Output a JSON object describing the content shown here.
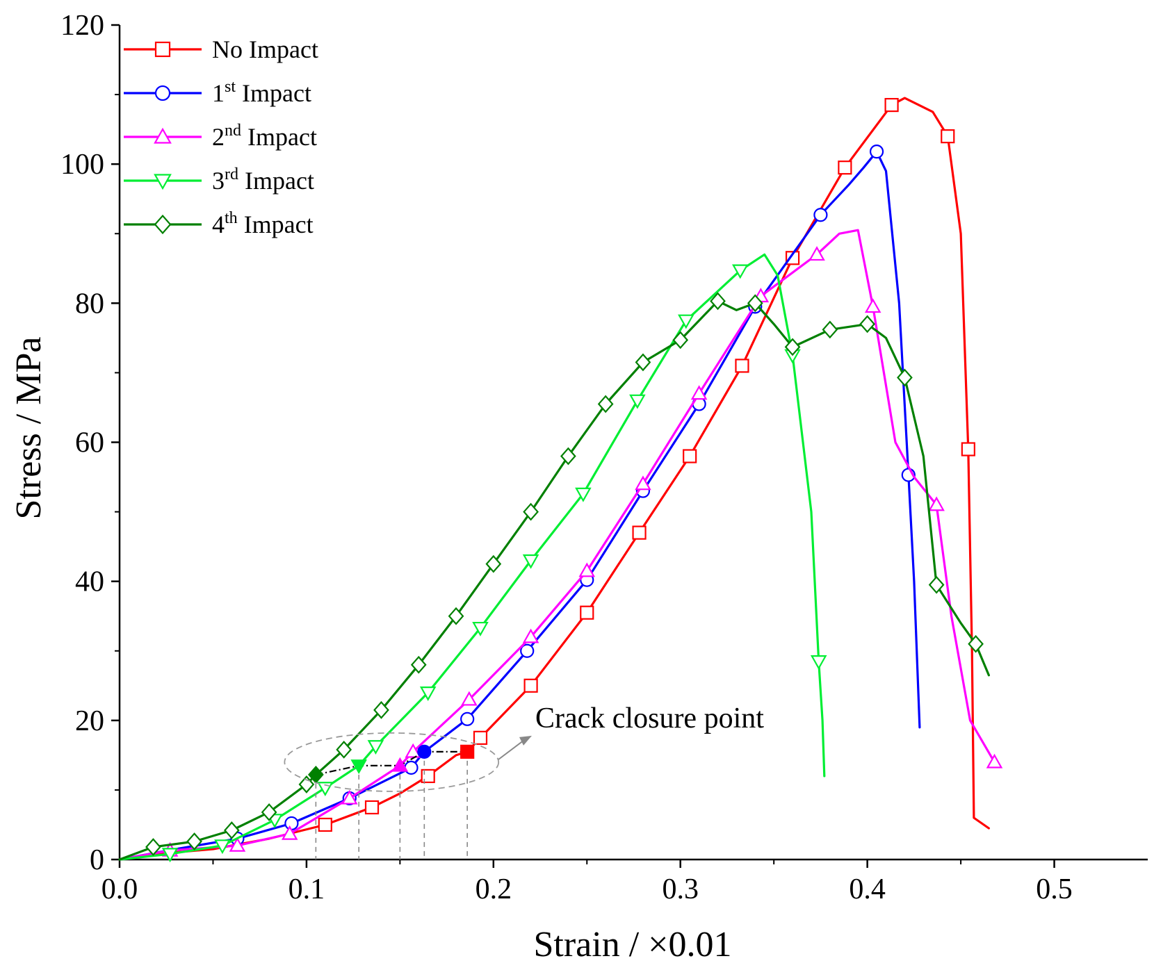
{
  "chart_data": {
    "type": "line",
    "title": "",
    "xlabel": "Strain / ×0.01",
    "ylabel": "Stress / MPa",
    "xlim": [
      0.0,
      0.55
    ],
    "ylim": [
      0,
      120
    ],
    "xticks": [
      "0.0",
      "0.1",
      "0.2",
      "0.3",
      "0.4",
      "0.5"
    ],
    "yticks": [
      "0",
      "20",
      "40",
      "60",
      "80",
      "100",
      "120"
    ],
    "grid": false,
    "legend": "top-left",
    "series": [
      {
        "name": "No Impact",
        "base": "No Impact",
        "sup": "",
        "color": "#ff0000",
        "marker": "square",
        "points": [
          [
            0,
            0
          ],
          [
            0.02,
            0.8
          ],
          [
            0.05,
            1.5
          ],
          [
            0.08,
            3.0
          ],
          [
            0.11,
            5.0
          ],
          [
            0.135,
            7.5
          ],
          [
            0.15,
            9.5
          ],
          [
            0.165,
            12
          ],
          [
            0.18,
            15
          ],
          [
            0.186,
            15.5
          ],
          [
            0.193,
            17.5
          ],
          [
            0.22,
            25
          ],
          [
            0.25,
            35.5
          ],
          [
            0.278,
            47
          ],
          [
            0.305,
            58
          ],
          [
            0.333,
            71
          ],
          [
            0.36,
            86.5
          ],
          [
            0.388,
            99.5
          ],
          [
            0.413,
            108.5
          ],
          [
            0.42,
            109.5
          ],
          [
            0.435,
            107.5
          ],
          [
            0.443,
            104
          ],
          [
            0.45,
            90
          ],
          [
            0.454,
            59
          ],
          [
            0.456,
            30
          ],
          [
            0.457,
            6
          ],
          [
            0.465,
            4.5
          ]
        ],
        "markers": [
          [
            0.11,
            5.0
          ],
          [
            0.135,
            7.5
          ],
          [
            0.165,
            12
          ],
          [
            0.193,
            17.5
          ],
          [
            0.22,
            25
          ],
          [
            0.25,
            35.5
          ],
          [
            0.278,
            47
          ],
          [
            0.305,
            58
          ],
          [
            0.333,
            71
          ],
          [
            0.36,
            86.5
          ],
          [
            0.388,
            99.5
          ],
          [
            0.413,
            108.5
          ],
          [
            0.443,
            104
          ],
          [
            0.454,
            59
          ]
        ],
        "closure": [
          0.186,
          15.5
        ]
      },
      {
        "name": "1st Impact",
        "base": "1",
        "sup": "st",
        "color": "#0000ff",
        "marker": "circle",
        "points": [
          [
            0,
            0
          ],
          [
            0.03,
            1.5
          ],
          [
            0.063,
            3.0
          ],
          [
            0.092,
            5.2
          ],
          [
            0.123,
            8.8
          ],
          [
            0.156,
            13.2
          ],
          [
            0.163,
            15.5
          ],
          [
            0.186,
            20.2
          ],
          [
            0.218,
            30
          ],
          [
            0.25,
            40.2
          ],
          [
            0.28,
            53
          ],
          [
            0.31,
            65.5
          ],
          [
            0.34,
            79.5
          ],
          [
            0.375,
            92.7
          ],
          [
            0.39,
            97
          ],
          [
            0.398,
            99.5
          ],
          [
            0.405,
            101.8
          ],
          [
            0.41,
            99
          ],
          [
            0.417,
            80
          ],
          [
            0.422,
            55.3
          ],
          [
            0.425,
            40
          ],
          [
            0.428,
            19
          ]
        ],
        "markers": [
          [
            0.063,
            3.0
          ],
          [
            0.092,
            5.2
          ],
          [
            0.123,
            8.8
          ],
          [
            0.156,
            13.2
          ],
          [
            0.186,
            20.2
          ],
          [
            0.218,
            30
          ],
          [
            0.25,
            40.2
          ],
          [
            0.28,
            53
          ],
          [
            0.31,
            65.5
          ],
          [
            0.34,
            79.5
          ],
          [
            0.375,
            92.7
          ],
          [
            0.405,
            101.8
          ],
          [
            0.422,
            55.3
          ]
        ],
        "closure": [
          0.163,
          15.5
        ]
      },
      {
        "name": "2nd Impact",
        "base": "2",
        "sup": "nd",
        "color": "#ff00ff",
        "marker": "triangle-up",
        "points": [
          [
            0,
            0
          ],
          [
            0.027,
            1.3
          ],
          [
            0.063,
            2.0
          ],
          [
            0.091,
            3.7
          ],
          [
            0.123,
            8.8
          ],
          [
            0.15,
            13.5
          ],
          [
            0.157,
            15.5
          ],
          [
            0.187,
            23
          ],
          [
            0.22,
            32
          ],
          [
            0.25,
            41.5
          ],
          [
            0.28,
            54
          ],
          [
            0.31,
            67
          ],
          [
            0.343,
            81
          ],
          [
            0.373,
            87
          ],
          [
            0.385,
            90
          ],
          [
            0.395,
            90.5
          ],
          [
            0.403,
            79.5
          ],
          [
            0.415,
            60
          ],
          [
            0.425,
            55
          ],
          [
            0.437,
            51
          ],
          [
            0.445,
            35
          ],
          [
            0.455,
            20
          ],
          [
            0.468,
            14
          ]
        ],
        "markers": [
          [
            0.027,
            1.3
          ],
          [
            0.063,
            2.0
          ],
          [
            0.091,
            3.7
          ],
          [
            0.123,
            8.8
          ],
          [
            0.157,
            15.5
          ],
          [
            0.187,
            23
          ],
          [
            0.22,
            32
          ],
          [
            0.25,
            41.5
          ],
          [
            0.28,
            54
          ],
          [
            0.31,
            67
          ],
          [
            0.343,
            81
          ],
          [
            0.373,
            87
          ],
          [
            0.403,
            79.5
          ],
          [
            0.437,
            51
          ],
          [
            0.468,
            14
          ]
        ],
        "closure": [
          0.15,
          13.5
        ]
      },
      {
        "name": "3rd Impact",
        "base": "3",
        "sup": "rd",
        "color": "#00ee33",
        "marker": "triangle-down",
        "points": [
          [
            0,
            0
          ],
          [
            0.027,
            0.8
          ],
          [
            0.055,
            2.0
          ],
          [
            0.083,
            5.7
          ],
          [
            0.11,
            10.3
          ],
          [
            0.128,
            13.5
          ],
          [
            0.137,
            16.3
          ],
          [
            0.165,
            24
          ],
          [
            0.193,
            33.3
          ],
          [
            0.22,
            43
          ],
          [
            0.248,
            52.6
          ],
          [
            0.277,
            66
          ],
          [
            0.303,
            77.5
          ],
          [
            0.332,
            84.7
          ],
          [
            0.345,
            87
          ],
          [
            0.352,
            84
          ],
          [
            0.36,
            72.5
          ],
          [
            0.37,
            50
          ],
          [
            0.374,
            28.5
          ],
          [
            0.376,
            20
          ],
          [
            0.377,
            12
          ]
        ],
        "markers": [
          [
            0.027,
            0.8
          ],
          [
            0.055,
            2.0
          ],
          [
            0.083,
            5.7
          ],
          [
            0.11,
            10.3
          ],
          [
            0.137,
            16.3
          ],
          [
            0.165,
            24
          ],
          [
            0.193,
            33.3
          ],
          [
            0.22,
            43
          ],
          [
            0.248,
            52.6
          ],
          [
            0.277,
            66
          ],
          [
            0.303,
            77.5
          ],
          [
            0.332,
            84.7
          ],
          [
            0.36,
            72.5
          ],
          [
            0.374,
            28.5
          ]
        ],
        "closure": [
          0.128,
          13.5
        ]
      },
      {
        "name": "4th Impact",
        "base": "4",
        "sup": "th",
        "color": "#008000",
        "marker": "diamond",
        "points": [
          [
            0,
            0
          ],
          [
            0.018,
            1.8
          ],
          [
            0.04,
            2.6
          ],
          [
            0.06,
            4.2
          ],
          [
            0.08,
            6.8
          ],
          [
            0.1,
            10.8
          ],
          [
            0.105,
            12.2
          ],
          [
            0.12,
            15.8
          ],
          [
            0.14,
            21.5
          ],
          [
            0.16,
            28
          ],
          [
            0.18,
            35
          ],
          [
            0.2,
            42.5
          ],
          [
            0.22,
            50
          ],
          [
            0.24,
            58
          ],
          [
            0.26,
            65.5
          ],
          [
            0.28,
            71.5
          ],
          [
            0.3,
            74.7
          ],
          [
            0.32,
            80.3
          ],
          [
            0.33,
            79
          ],
          [
            0.34,
            80
          ],
          [
            0.35,
            77
          ],
          [
            0.36,
            73.7
          ],
          [
            0.38,
            76.2
          ],
          [
            0.4,
            77
          ],
          [
            0.41,
            75
          ],
          [
            0.42,
            69.3
          ],
          [
            0.43,
            58
          ],
          [
            0.437,
            39.5
          ],
          [
            0.45,
            34
          ],
          [
            0.458,
            31
          ],
          [
            0.465,
            26.5
          ]
        ],
        "markers": [
          [
            0.018,
            1.8
          ],
          [
            0.04,
            2.6
          ],
          [
            0.06,
            4.2
          ],
          [
            0.08,
            6.8
          ],
          [
            0.1,
            10.8
          ],
          [
            0.12,
            15.8
          ],
          [
            0.14,
            21.5
          ],
          [
            0.16,
            28
          ],
          [
            0.18,
            35
          ],
          [
            0.2,
            42.5
          ],
          [
            0.22,
            50
          ],
          [
            0.24,
            58
          ],
          [
            0.26,
            65.5
          ],
          [
            0.28,
            71.5
          ],
          [
            0.3,
            74.7
          ],
          [
            0.32,
            80.3
          ],
          [
            0.34,
            80
          ],
          [
            0.36,
            73.7
          ],
          [
            0.38,
            76.2
          ],
          [
            0.4,
            77
          ],
          [
            0.42,
            69.3
          ],
          [
            0.437,
            39.5
          ],
          [
            0.458,
            31
          ]
        ],
        "closure": [
          0.105,
          12.2
        ]
      }
    ],
    "annotation": {
      "text": "Crack closure point"
    }
  }
}
